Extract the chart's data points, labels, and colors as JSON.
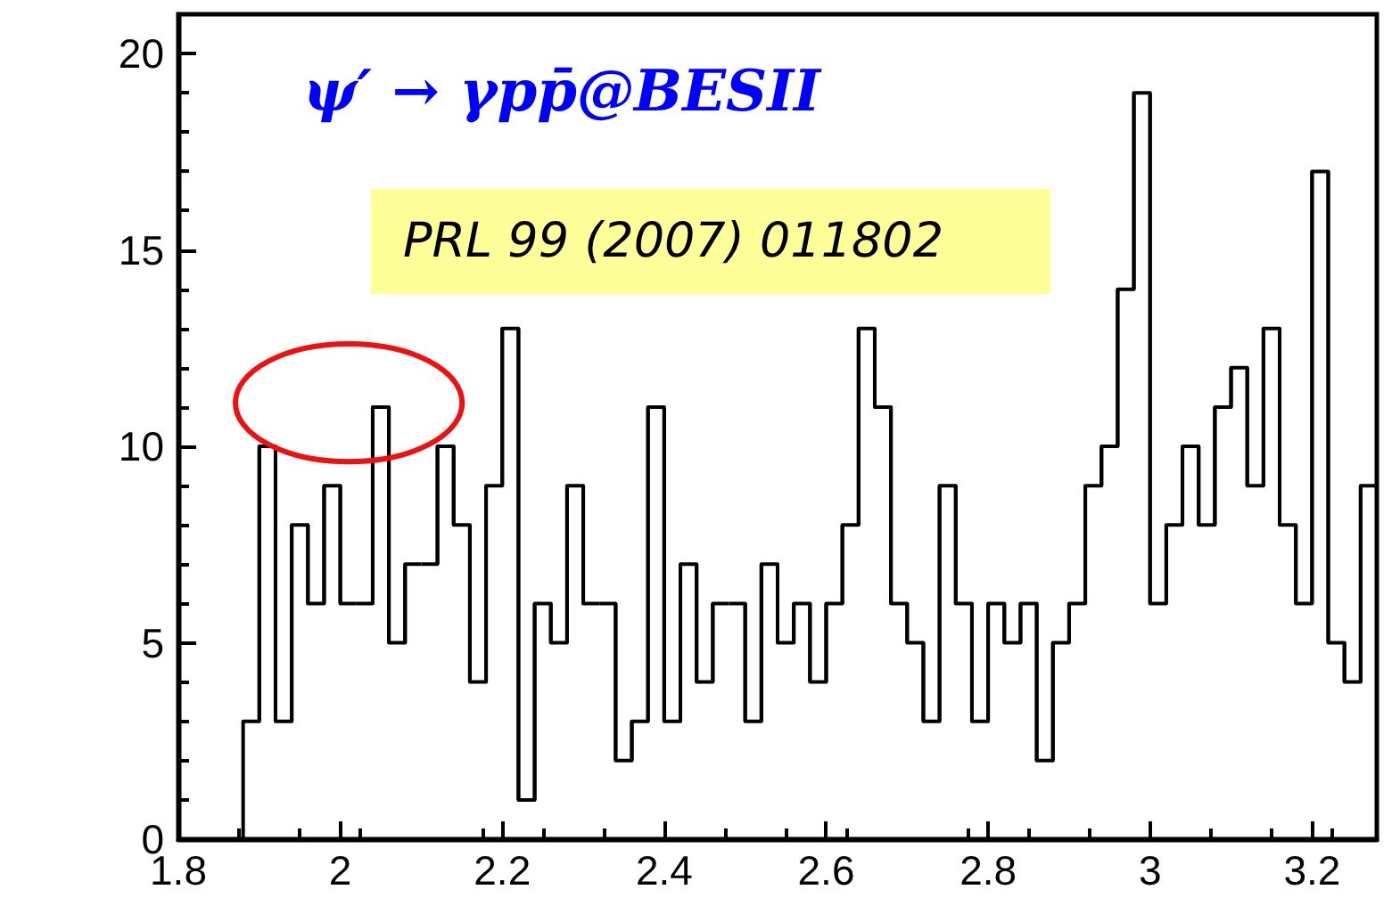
{
  "chart_data": {
    "type": "histogram",
    "title": "ψ′ → γpp̄@BESII",
    "bins": [
      1.88,
      1.9,
      1.92,
      1.94,
      1.96,
      1.98,
      2,
      2.02,
      2.04,
      2.06,
      2.08,
      2.1,
      2.12,
      2.14,
      2.16,
      2.18,
      2.2,
      2.22,
      2.24,
      2.26,
      2.28,
      2.3,
      2.32,
      2.34,
      2.36,
      2.38,
      2.4,
      2.42,
      2.44,
      2.46,
      2.48,
      2.5,
      2.52,
      2.54,
      2.56,
      2.58,
      2.6,
      2.62,
      2.64,
      2.66,
      2.68,
      2.7,
      2.72,
      2.74,
      2.76,
      2.78,
      2.8,
      2.82,
      2.84,
      2.86,
      2.88,
      2.9,
      2.92,
      2.94,
      2.96,
      2.98,
      3,
      3.02,
      3.04,
      3.06,
      3.08,
      3.1,
      3.12,
      3.14,
      3.16,
      3.18,
      3.2,
      3.22,
      3.24,
      3.26,
      3.28
    ],
    "values": [
      3,
      10,
      3,
      8,
      6,
      9,
      6,
      6,
      11,
      5,
      7,
      7,
      10,
      8,
      4,
      9,
      13,
      1,
      6,
      5,
      9,
      6,
      6,
      2,
      3,
      11,
      3,
      7,
      4,
      6,
      6,
      3,
      7,
      5,
      6,
      4,
      6,
      8,
      13,
      11,
      6,
      5,
      3,
      9,
      6,
      3,
      6,
      5,
      6,
      2,
      5,
      6,
      9,
      10,
      14,
      19,
      6,
      8,
      10,
      8,
      11,
      12,
      9,
      13,
      8,
      6,
      17,
      5,
      4,
      9
    ],
    "color": "#000000",
    "xlim": [
      1.8,
      3.28
    ],
    "xticks": [
      1.8,
      2,
      2.2,
      2.4,
      2.6,
      2.8,
      3,
      3.2
    ],
    "ylim": [
      0,
      21
    ],
    "yticks": [
      0,
      5,
      10,
      15,
      20
    ],
    "grid": false,
    "annotations": [
      "PRL 99 (2007) 011802"
    ]
  }
}
